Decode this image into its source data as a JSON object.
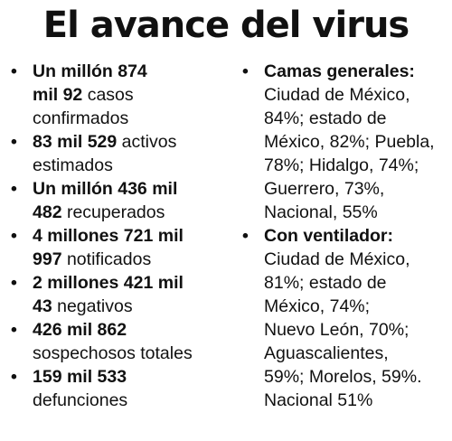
{
  "title": "El avance del virus",
  "bullet_glyph": "•",
  "left_items": [
    {
      "bold1": "Un millón 874",
      "bold2": "mil 92",
      "rest2": " casos",
      "line3": "confirmados"
    },
    {
      "bold1": "83 mil 529",
      "rest1": " activos",
      "line2": "estimados"
    },
    {
      "bold1": "Un millón 436 mil",
      "bold2": "482",
      "rest2": " recuperados"
    },
    {
      "bold1": "4 millones 721 mil",
      "bold2": "997",
      "rest2": " notificados"
    },
    {
      "bold1": "2 millones 421 mil",
      "bold2": "43",
      "rest2": " negativos"
    },
    {
      "bold1": "426 mil 862",
      "line2": "sospechosos totales"
    },
    {
      "bold1": "159 mil 533",
      "line2": "defunciones"
    }
  ],
  "right_items": [
    {
      "heading": "Camas generales:",
      "lines": [
        "Ciudad de México,",
        "84%; estado de",
        "México, 82%; Puebla,",
        "78%; Hidalgo, 74%;",
        "Guerrero, 73%,",
        "Nacional, 55%"
      ]
    },
    {
      "heading": "Con ventilador:",
      "lines": [
        "Ciudad de México,",
        "81%; estado de",
        "México, 74%;",
        "Nuevo León, 70%;",
        "Aguascalientes,",
        "59%; Morelos, 59%.",
        "Nacional 51%"
      ]
    }
  ]
}
